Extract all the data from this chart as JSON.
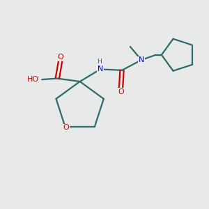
{
  "background_color": "#e8eaea",
  "bond_color": "#2d6b6b",
  "N_color": "#0000cc",
  "O_color": "#cc0000",
  "line_width": 1.6,
  "figsize": [
    3.0,
    3.0
  ],
  "dpi": 100,
  "xlim": [
    0,
    10
  ],
  "ylim": [
    0,
    10
  ]
}
